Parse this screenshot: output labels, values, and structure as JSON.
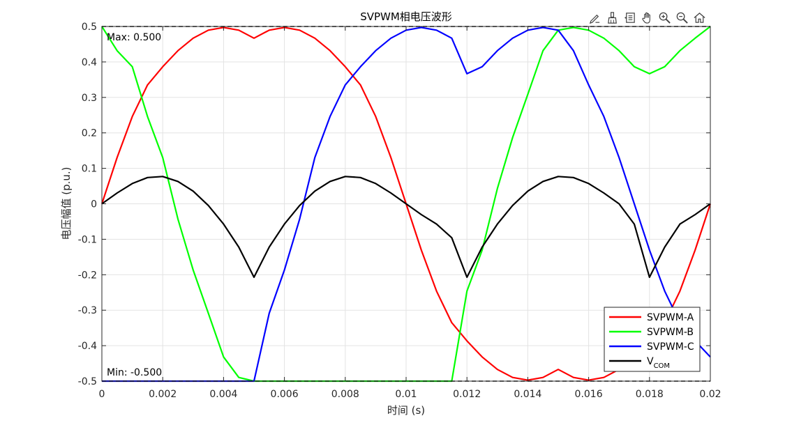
{
  "toolbar": {
    "icons": [
      "edit-icon",
      "brush-icon",
      "datatip-icon",
      "pan-icon",
      "zoom-in-icon",
      "zoom-out-icon",
      "home-icon"
    ]
  },
  "chart_data": {
    "type": "line",
    "title": "SVPWM相电压波形",
    "xlabel": "时间 (s)",
    "ylabel": "电压幅值 (p.u.)",
    "xlim": [
      0,
      0.02
    ],
    "ylim": [
      -0.5,
      0.5
    ],
    "xticks": [
      0,
      0.002,
      0.004,
      0.006,
      0.008,
      0.01,
      0.012,
      0.014,
      0.016,
      0.018,
      0.02
    ],
    "xtick_labels": [
      "0",
      "0.002",
      "0.004",
      "0.006",
      "0.008",
      "0.01",
      "0.012",
      "0.014",
      "0.016",
      "0.018",
      "0.02"
    ],
    "yticks": [
      -0.5,
      -0.4,
      -0.3,
      -0.2,
      -0.1,
      0,
      0.1,
      0.2,
      0.3,
      0.4,
      0.5
    ],
    "ytick_labels": [
      "-0.5",
      "-0.4",
      "-0.3",
      "-0.2",
      "-0.1",
      "0",
      "0.1",
      "0.2",
      "0.3",
      "0.4",
      "0.5"
    ],
    "grid": true,
    "legend_position": "bottom-right",
    "x": [
      0,
      0.0005,
      0.001,
      0.0015,
      0.002,
      0.0025,
      0.003,
      0.0035,
      0.004,
      0.0045,
      0.005,
      0.0055,
      0.006,
      0.0065,
      0.007,
      0.0075,
      0.008,
      0.0085,
      0.009,
      0.0095,
      0.01,
      0.0105,
      0.011,
      0.0115,
      0.012,
      0.0125,
      0.013,
      0.0135,
      0.014,
      0.0145,
      0.015,
      0.0155,
      0.016,
      0.0165,
      0.017,
      0.0175,
      0.018,
      0.0185,
      0.019,
      0.0195,
      0.02
    ],
    "series": [
      {
        "name": "SVPWM-A",
        "color": "#ff0000",
        "values": [
          0,
          0.1304,
          0.2462,
          0.3351,
          0.3864,
          0.4318,
          0.467,
          0.4895,
          0.4973,
          0.4895,
          0.4669,
          0.4895,
          0.4973,
          0.4895,
          0.467,
          0.4318,
          0.3864,
          0.3351,
          0.2462,
          0.1304,
          0,
          -0.1304,
          -0.2462,
          -0.3351,
          -0.3864,
          -0.4318,
          -0.467,
          -0.4895,
          -0.4973,
          -0.4895,
          -0.4669,
          -0.4895,
          -0.4973,
          -0.4895,
          -0.467,
          -0.4318,
          -0.3864,
          -0.3351,
          -0.2462,
          -0.1304,
          0
        ]
      },
      {
        "name": "SVPWM-B",
        "color": "#00ff00",
        "values": [
          0.5,
          0.4318,
          0.3864,
          0.2462,
          0.1304,
          -0.0431,
          -0.1866,
          -0.3087,
          -0.4318,
          -0.4895,
          -0.5,
          -0.5,
          -0.5,
          -0.5,
          -0.5,
          -0.5,
          -0.5,
          -0.5,
          -0.5,
          -0.5,
          -0.5,
          -0.5,
          -0.5,
          -0.5,
          -0.2462,
          -0.1304,
          0.0431,
          0.1866,
          0.3087,
          0.4318,
          0.4895,
          0.4973,
          0.4895,
          0.467,
          0.4318,
          0.3864,
          0.3668,
          0.3864,
          0.4318,
          0.467,
          0.5
        ]
      },
      {
        "name": "SVPWM-C",
        "color": "#0000ff",
        "values": [
          -0.5,
          -0.5,
          -0.5,
          -0.5,
          -0.5,
          -0.5,
          -0.5,
          -0.5,
          -0.5,
          -0.5,
          -0.5,
          -0.3087,
          -0.1866,
          -0.0431,
          0.1304,
          0.2462,
          0.3351,
          0.3864,
          0.4318,
          0.467,
          0.4895,
          0.4973,
          0.4895,
          0.467,
          0.3668,
          0.3864,
          0.4318,
          0.467,
          0.4895,
          0.4973,
          0.4895,
          0.4318,
          0.3351,
          0.2462,
          0.1304,
          0,
          -0.1304,
          -0.2462,
          -0.3351,
          -0.3864,
          -0.4318
        ]
      },
      {
        "name": "VCOM",
        "color": "#000000",
        "values": [
          0,
          0.0304,
          0.0571,
          0.0741,
          0.0771,
          0.0631,
          0.0357,
          -0.0048,
          -0.0571,
          -0.1221,
          -0.2071,
          -0.1221,
          -0.0571,
          -0.0048,
          0.0357,
          0.0631,
          0.0771,
          0.0741,
          0.0571,
          0.0304,
          0,
          -0.0304,
          -0.0571,
          -0.0957,
          -0.2071,
          -0.1221,
          -0.0571,
          -0.0048,
          0.0357,
          0.0631,
          0.0771,
          0.0741,
          0.0571,
          0.0304,
          0,
          -0.0571,
          -0.2071,
          -0.1221,
          -0.0571,
          -0.0304,
          0
        ]
      }
    ],
    "reference_lines": [
      {
        "value": 0.5,
        "label": "Max: 0.500",
        "color": "#000000",
        "style": "dashed"
      },
      {
        "value": -0.5,
        "label": "Min: -0.500",
        "color": "#000000",
        "style": "dashed"
      }
    ],
    "legend": {
      "entries": [
        {
          "label": "SVPWM-A",
          "sub": "",
          "color": "#ff0000"
        },
        {
          "label": "SVPWM-B",
          "sub": "",
          "color": "#00ff00"
        },
        {
          "label": "SVPWM-C",
          "sub": "",
          "color": "#0000ff"
        },
        {
          "label": "V",
          "sub": "COM",
          "color": "#000000"
        }
      ]
    }
  }
}
